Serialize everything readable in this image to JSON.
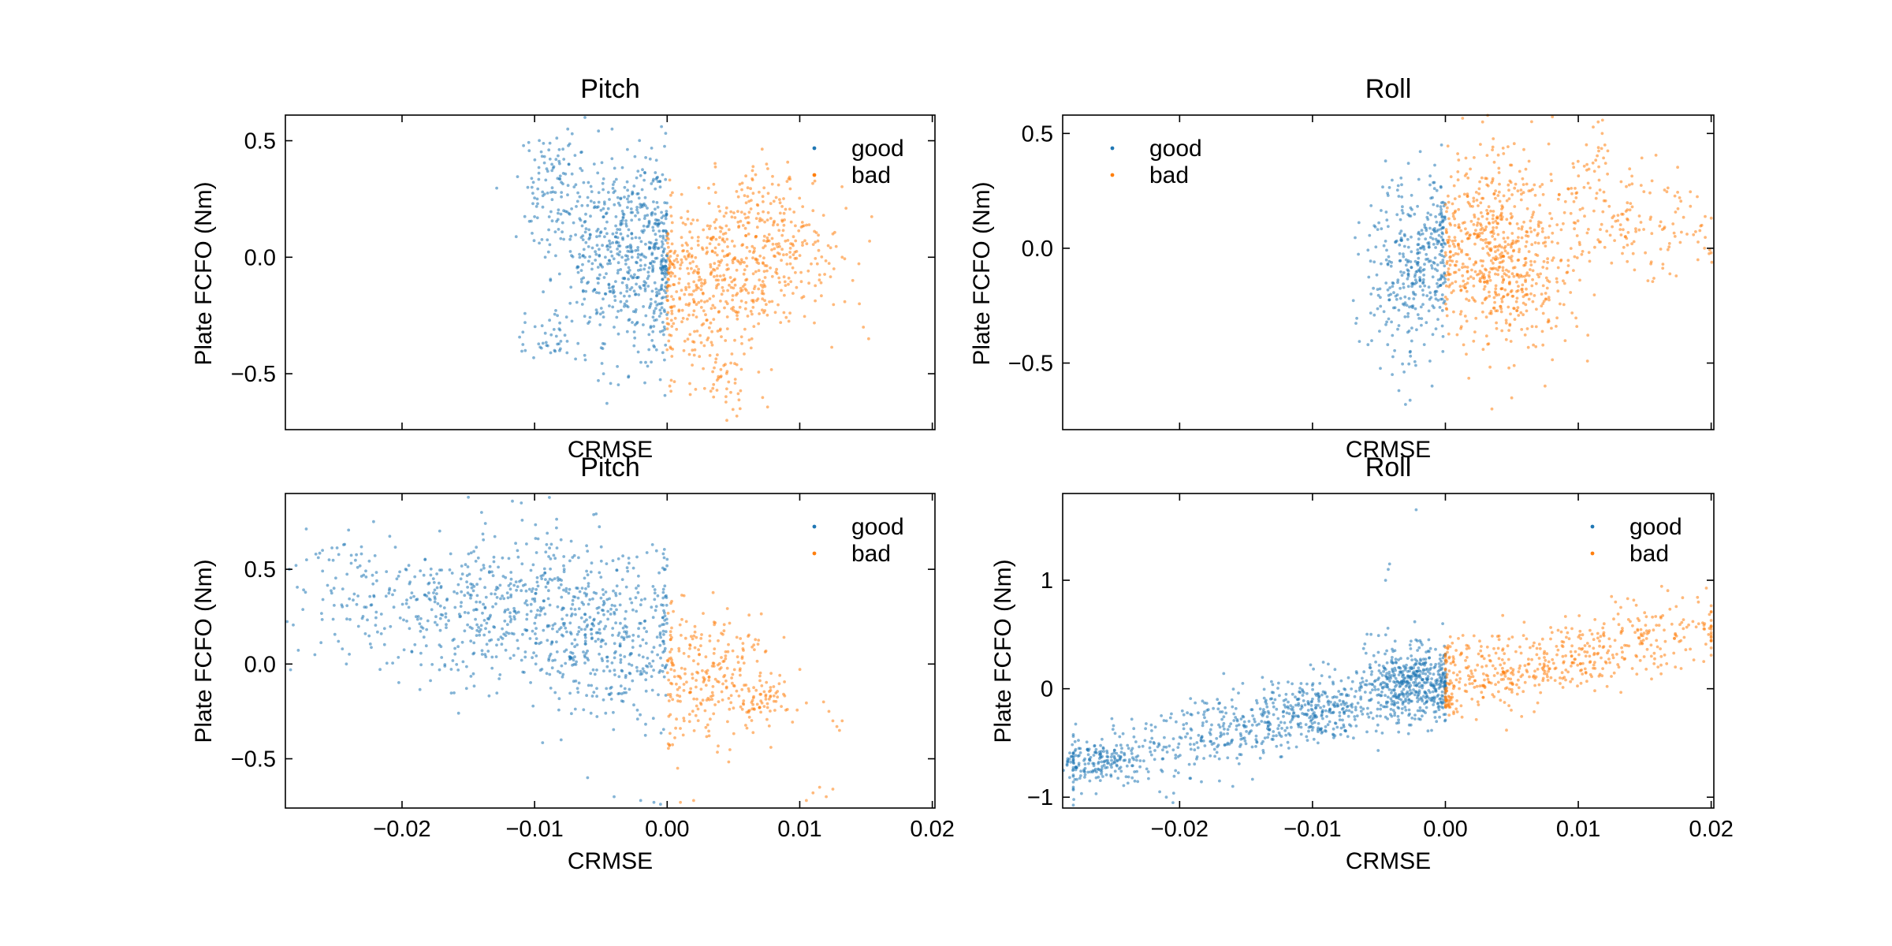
{
  "figure": {
    "background": "#ffffff"
  },
  "chart_data": [
    {
      "type": "scatter",
      "title": "Pitch",
      "xlabel": "CRMSE",
      "ylabel": "Plate FCFO (Nm)",
      "xlim": [
        -0.0288,
        0.0202
      ],
      "ylim": [
        -0.74,
        0.61
      ],
      "xticks": [
        -0.02,
        -0.01,
        0.0,
        0.01,
        0.02
      ],
      "xtick_labels": [],
      "yticks": [
        0.5,
        0.0,
        -0.5
      ],
      "ytick_labels": [
        "0.5",
        "0.0",
        "−0.5"
      ],
      "grid": false,
      "legend": "top-right",
      "series": [
        {
          "name": "good",
          "color": "#1f77b4",
          "clusters": [
            {
              "cx": -0.003,
              "cy": 0.0,
              "sx": 0.0024,
              "sy": 0.21,
              "n": 520
            },
            {
              "cx": -0.0085,
              "cy": 0.3,
              "sx": 0.0015,
              "sy": 0.12,
              "n": 110
            },
            {
              "cx": -0.009,
              "cy": -0.35,
              "sx": 0.0012,
              "sy": 0.06,
              "n": 40
            },
            {
              "cx": -0.0006,
              "cy": 0.05,
              "sx": 0.0005,
              "sy": 0.18,
              "n": 90
            }
          ],
          "x": [
            -0.0102,
            -0.0098,
            -0.0094,
            -0.0085,
            -0.0075,
            -0.0062,
            -0.0055,
            -0.0048,
            -0.004,
            -0.003,
            -0.002,
            -0.0012,
            -0.0005,
            -0.0025,
            -0.0035,
            -0.0045,
            -0.0065,
            -0.0078,
            -0.0088,
            -0.0092
          ],
          "y": [
            0.3,
            0.25,
            0.28,
            -0.4,
            0.55,
            0.6,
            0.4,
            -0.5,
            -0.3,
            0.25,
            0.35,
            -0.45,
            -0.2,
            -0.38,
            0.1,
            0.05,
            0.45,
            0.2,
            -0.1,
            0.0
          ]
        },
        {
          "name": "bad",
          "color": "#ff7f0e",
          "clusters": [
            {
              "cx": 0.003,
              "cy": -0.08,
              "sx": 0.0028,
              "sy": 0.16,
              "n": 420
            },
            {
              "cx": 0.009,
              "cy": 0.0,
              "sx": 0.0025,
              "sy": 0.14,
              "n": 170
            },
            {
              "cx": 0.004,
              "cy": -0.5,
              "sx": 0.0018,
              "sy": 0.09,
              "n": 60
            },
            {
              "cx": 0.007,
              "cy": 0.22,
              "sx": 0.0015,
              "sy": 0.1,
              "n": 60
            }
          ],
          "x": [
            0.0152,
            0.0148,
            0.0145,
            0.014,
            0.0132,
            0.0125,
            0.0118,
            0.011,
            0.0102,
            0.0095,
            0.0075,
            0.0055,
            0.0045,
            0.0035
          ],
          "y": [
            -0.35,
            -0.3,
            -0.2,
            -0.1,
            0.0,
            0.1,
            0.18,
            0.2,
            0.15,
            0.05,
            0.4,
            -0.65,
            -0.7,
            -0.6
          ]
        }
      ]
    },
    {
      "type": "scatter",
      "title": "Roll",
      "xlabel": "CRMSE",
      "ylabel": "Plate FCFO (Nm)",
      "xlim": [
        -0.0288,
        0.0202
      ],
      "ylim": [
        -0.79,
        0.58
      ],
      "xticks": [
        -0.02,
        -0.01,
        0.0,
        0.01,
        0.02
      ],
      "xtick_labels": [],
      "yticks": [
        0.5,
        0.0,
        -0.5
      ],
      "ytick_labels": [
        "0.5",
        "0.0",
        "−0.5"
      ],
      "grid": false,
      "legend": "top-left",
      "series": [
        {
          "name": "good",
          "color": "#1f77b4",
          "clusters": [
            {
              "cx": -0.0025,
              "cy": -0.1,
              "sx": 0.0018,
              "sy": 0.2,
              "n": 330
            },
            {
              "cx": -0.0004,
              "cy": 0.05,
              "sx": 0.0004,
              "sy": 0.15,
              "n": 60
            }
          ],
          "x": [
            -0.0045,
            -0.004,
            -0.0035,
            -0.003,
            -0.002,
            -0.001
          ],
          "y": [
            0.38,
            -0.55,
            -0.62,
            -0.68,
            0.3,
            -0.6
          ]
        },
        {
          "name": "bad",
          "color": "#ff7f0e",
          "clusters": [
            {
              "cx": 0.0035,
              "cy": 0.02,
              "sx": 0.0024,
              "sy": 0.2,
              "n": 520
            },
            {
              "cx": 0.006,
              "cy": -0.15,
              "sx": 0.002,
              "sy": 0.15,
              "n": 150
            },
            {
              "cx": 0.014,
              "cy": 0.1,
              "sx": 0.0035,
              "sy": 0.12,
              "n": 160
            },
            {
              "cx": 0.011,
              "cy": 0.4,
              "sx": 0.0008,
              "sy": 0.1,
              "n": 30
            }
          ],
          "x": [
            0.0115,
            0.0118,
            0.012,
            0.019,
            0.0195,
            0.02,
            0.0075,
            0.0035,
            0.0028
          ],
          "y": [
            0.55,
            0.5,
            0.45,
            -0.05,
            0.0,
            -0.02,
            -0.6,
            -0.7,
            0.55
          ]
        }
      ]
    },
    {
      "type": "scatter",
      "title": "Pitch",
      "xlabel": "CRMSE",
      "ylabel": "Plate FCFO (Nm)",
      "xlim": [
        -0.0288,
        0.0202
      ],
      "ylim": [
        -0.76,
        0.9
      ],
      "xticks": [
        -0.02,
        -0.01,
        0.0,
        0.01,
        0.02
      ],
      "xtick_labels": [
        "−0.02",
        "−0.01",
        "0.00",
        "0.01",
        "0.02"
      ],
      "yticks": [
        0.5,
        0.0,
        -0.5
      ],
      "ytick_labels": [
        "0.5",
        "0.0",
        "−0.5"
      ],
      "grid": false,
      "legend": "top-right",
      "series": [
        {
          "name": "good",
          "color": "#1f77b4",
          "clusters": [
            {
              "cx": -0.01,
              "cy": 0.3,
              "sx": 0.0055,
              "sy": 0.2,
              "n": 600
            },
            {
              "cx": -0.004,
              "cy": 0.05,
              "sx": 0.0028,
              "sy": 0.2,
              "n": 220
            },
            {
              "cx": -0.0215,
              "cy": 0.35,
              "sx": 0.0035,
              "sy": 0.15,
              "n": 140
            }
          ],
          "x": [
            -0.0285,
            -0.028,
            -0.0272,
            -0.0265,
            -0.026,
            -0.0255,
            -0.0248,
            -0.0245,
            -0.0242,
            -0.015,
            -0.014,
            -0.011,
            -0.008,
            -0.006,
            -0.004,
            -0.002,
            -0.001,
            -0.0005
          ],
          "y": [
            0.5,
            0.52,
            0.55,
            0.58,
            0.6,
            0.55,
            0.12,
            0.08,
            0.0,
            0.88,
            0.8,
            0.85,
            -0.4,
            -0.6,
            -0.7,
            -0.72,
            -0.73,
            -0.74
          ]
        },
        {
          "name": "bad",
          "color": "#ff7f0e",
          "clusters": [
            {
              "cx": 0.003,
              "cy": -0.05,
              "sx": 0.0025,
              "sy": 0.18,
              "n": 260
            },
            {
              "cx": 0.0072,
              "cy": -0.18,
              "sx": 0.0012,
              "sy": 0.05,
              "n": 60
            }
          ],
          "x": [
            0.0118,
            0.0122,
            0.0125,
            0.0128,
            0.013,
            0.0132,
            0.0105,
            0.011,
            0.0115,
            0.012,
            0.0125,
            0.001,
            0.002,
            0.0085
          ],
          "y": [
            -0.2,
            -0.25,
            -0.3,
            -0.33,
            -0.35,
            -0.3,
            -0.72,
            -0.68,
            -0.65,
            -0.7,
            -0.66,
            -0.73,
            -0.72,
            -0.06
          ]
        }
      ]
    },
    {
      "type": "scatter",
      "title": "Roll",
      "xlabel": "CRMSE",
      "ylabel": "Plate FCFO (Nm)",
      "xlim": [
        -0.0288,
        0.0202
      ],
      "ylim": [
        -1.1,
        1.8
      ],
      "xticks": [
        -0.02,
        -0.01,
        0.0,
        0.01,
        0.02
      ],
      "xtick_labels": [
        "−0.02",
        "−0.01",
        "0.00",
        "0.01",
        "0.02"
      ],
      "yticks": [
        1,
        0,
        -1
      ],
      "ytick_labels": [
        "1",
        "0",
        "−1"
      ],
      "grid": false,
      "legend": "top-right",
      "series": [
        {
          "name": "good",
          "color": "#1f77b4",
          "line_trend": {
            "x0": -0.028,
            "y0": -0.68,
            "x1": 0.0,
            "y1": 0.05
          },
          "clusters": [
            {
              "trend": true,
              "sx": 0.0075,
              "sy": 0.17,
              "n": 600
            },
            {
              "cx": -0.0025,
              "cy": 0.05,
              "sx": 0.0018,
              "sy": 0.18,
              "n": 420
            },
            {
              "cx": -0.0265,
              "cy": -0.68,
              "sx": 0.0015,
              "sy": 0.08,
              "n": 150
            },
            {
              "cx": -0.009,
              "cy": -0.2,
              "sx": 0.0015,
              "sy": 0.15,
              "n": 120
            }
          ],
          "x": [
            -0.0045,
            -0.0043,
            -0.0042,
            -0.0022,
            -0.021,
            -0.0205,
            -0.0002,
            -0.0215,
            -0.017,
            -0.016
          ],
          "y": [
            1.0,
            1.1,
            1.15,
            1.65,
            -1.0,
            -1.05,
            0.6,
            -0.95,
            -0.85,
            -0.9
          ]
        },
        {
          "name": "bad",
          "color": "#ff7f0e",
          "line_trend": {
            "x0": 0.0,
            "y0": 0.05,
            "x1": 0.02,
            "y1": 0.55
          },
          "clusters": [
            {
              "trend": true,
              "sx": 0.006,
              "sy": 0.17,
              "n": 400
            },
            {
              "cx": 0.0025,
              "cy": 0.15,
              "sx": 0.0018,
              "sy": 0.2,
              "n": 120
            },
            {
              "cx": 0.0002,
              "cy": -0.15,
              "sx": 0.0005,
              "sy": 0.05,
              "n": 30
            }
          ],
          "x": [
            0.0125,
            0.0128,
            0.0132,
            0.0155,
            0.016,
            0.0195,
            0.0198,
            0.02
          ],
          "y": [
            0.85,
            0.8,
            0.75,
            0.3,
            0.2,
            0.55,
            0.5,
            0.55
          ]
        }
      ]
    }
  ]
}
